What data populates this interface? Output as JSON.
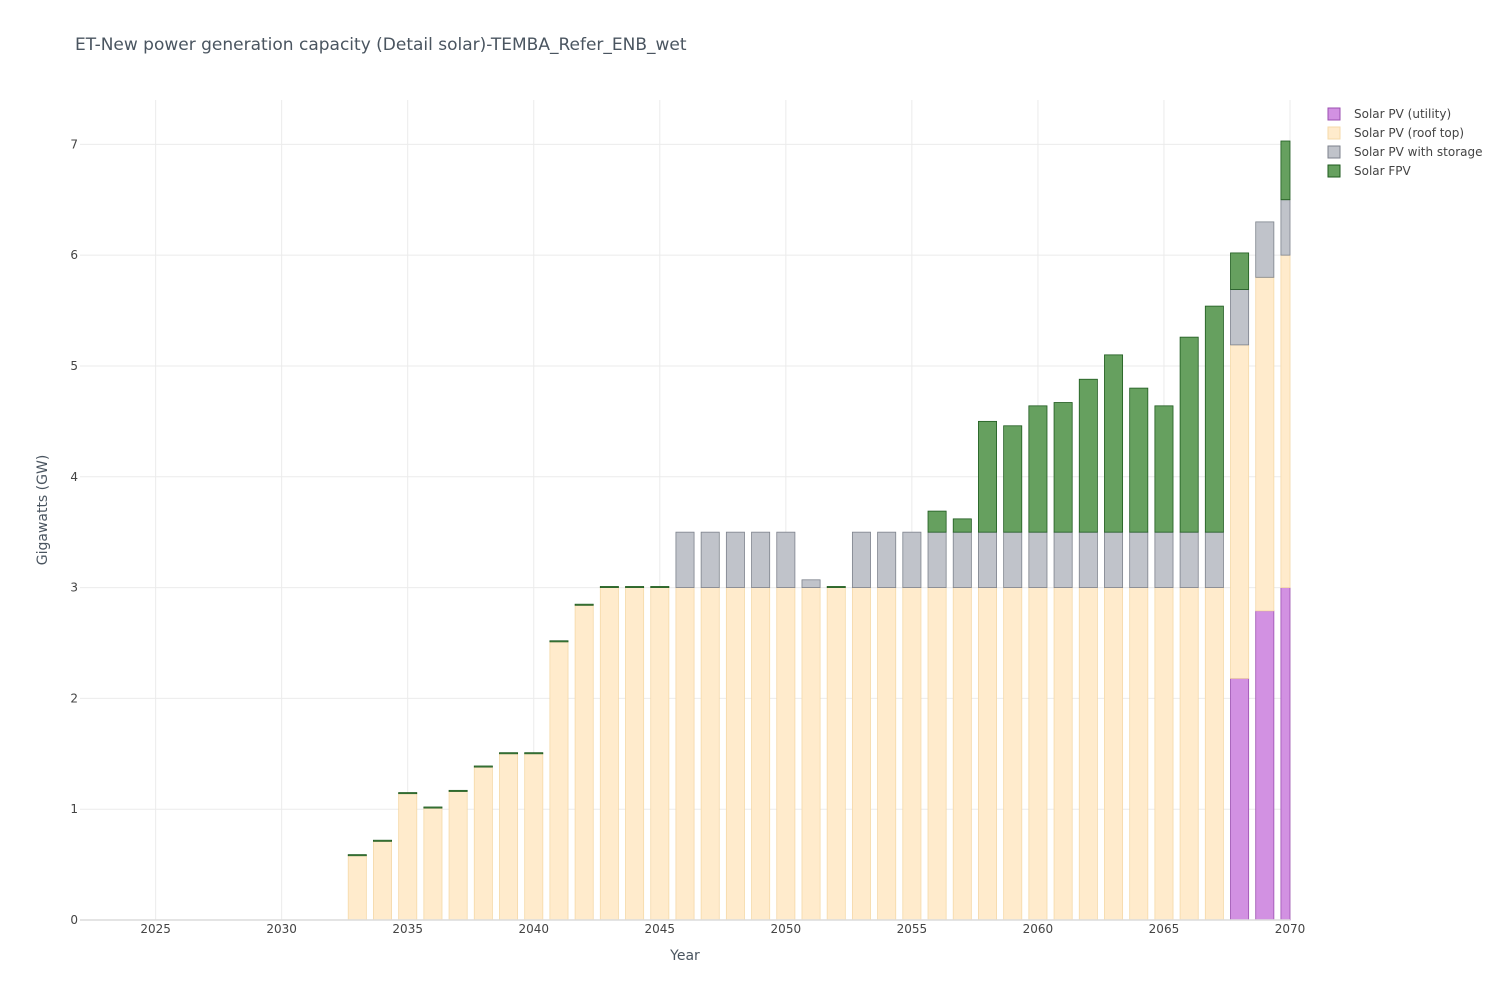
{
  "chart_data": {
    "type": "bar",
    "stacked": true,
    "title": "ET-New power generation capacity (Detail solar)-TEMBA_Refer_ENB_wet",
    "xlabel": "Year",
    "ylabel": "Gigawatts (GW)",
    "xlim": [
      2022,
      2070
    ],
    "ylim": [
      0,
      7.4
    ],
    "x_ticks": [
      2025,
      2030,
      2035,
      2040,
      2045,
      2050,
      2055,
      2060,
      2065,
      2070
    ],
    "y_ticks": [
      0,
      1,
      2,
      3,
      4,
      5,
      6,
      7
    ],
    "grid": true,
    "legend_position": "top-right",
    "x": [
      2033,
      2034,
      2035,
      2036,
      2037,
      2038,
      2039,
      2040,
      2041,
      2042,
      2043,
      2044,
      2045,
      2046,
      2047,
      2048,
      2049,
      2050,
      2051,
      2052,
      2053,
      2054,
      2055,
      2056,
      2057,
      2058,
      2059,
      2060,
      2061,
      2062,
      2063,
      2064,
      2065,
      2066,
      2067,
      2068,
      2069,
      2070
    ],
    "series": [
      {
        "name": "Solar PV (utility)",
        "fill": "#d291e2",
        "stroke": "#9b4fb0",
        "values": [
          0,
          0,
          0,
          0,
          0,
          0,
          0,
          0,
          0,
          0,
          0,
          0,
          0,
          0,
          0,
          0,
          0,
          0,
          0,
          0,
          0,
          0,
          0,
          0,
          0,
          0,
          0,
          0,
          0,
          0,
          0,
          0,
          0,
          0,
          0,
          2.18,
          2.79,
          3.0
        ]
      },
      {
        "name": "Solar PV (roof top)",
        "fill": "#ffebcc",
        "stroke": "#f5d9a8",
        "values": [
          0.58,
          0.71,
          1.14,
          1.01,
          1.16,
          1.38,
          1.5,
          1.5,
          2.51,
          2.84,
          3.0,
          3.0,
          3.0,
          3.0,
          3.0,
          3.0,
          3.0,
          3.0,
          3.0,
          3.0,
          3.0,
          3.0,
          3.0,
          3.0,
          3.0,
          3.0,
          3.0,
          3.0,
          3.0,
          3.0,
          3.0,
          3.0,
          3.0,
          3.0,
          3.0,
          3.01,
          3.01,
          3.0
        ]
      },
      {
        "name": "Solar PV with storage",
        "fill": "#c0c3ca",
        "stroke": "#7d828c",
        "values": [
          0,
          0,
          0,
          0,
          0,
          0,
          0,
          0,
          0,
          0,
          0,
          0,
          0,
          0.5,
          0.5,
          0.5,
          0.5,
          0.5,
          0.07,
          0,
          0.5,
          0.5,
          0.5,
          0.5,
          0.5,
          0.5,
          0.5,
          0.5,
          0.5,
          0.5,
          0.5,
          0.5,
          0.5,
          0.5,
          0.5,
          0.5,
          0.5,
          0.5
        ]
      },
      {
        "name": "Solar FPV",
        "fill": "#66a05f",
        "stroke": "#1e5a1e",
        "values": [
          0.01,
          0.01,
          0.01,
          0.01,
          0.01,
          0.01,
          0.01,
          0.01,
          0.01,
          0.01,
          0.01,
          0.01,
          0.01,
          0,
          0,
          0,
          0,
          0,
          0,
          0.01,
          0,
          0,
          0,
          0.19,
          0.12,
          1.0,
          0.96,
          1.14,
          1.17,
          1.38,
          1.6,
          1.3,
          1.14,
          1.76,
          2.04,
          0.33,
          0,
          0.53
        ]
      }
    ]
  }
}
